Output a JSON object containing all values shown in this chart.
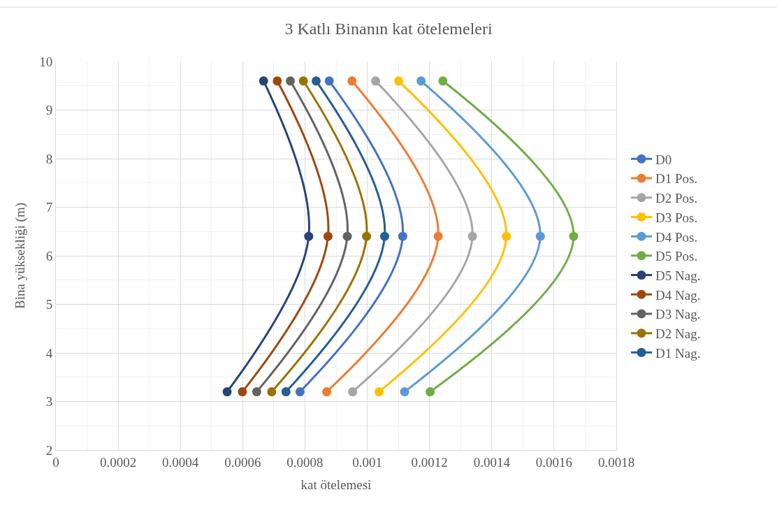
{
  "chart_data": {
    "type": "line",
    "title": "3 Katlı Binanın kat ötelemeleri",
    "xlabel": "kat ötelemesi",
    "ylabel": "Bina yüksekliği (m)",
    "xlim": [
      0,
      0.0018
    ],
    "xticks": [
      0,
      0.0002,
      0.0004,
      0.0006,
      0.0008,
      0.001,
      0.0012,
      0.0014,
      0.0016,
      0.0018
    ],
    "ylim": [
      2,
      10
    ],
    "yticks": [
      2,
      3,
      4,
      5,
      6,
      7,
      8,
      9,
      10
    ],
    "grid": true,
    "legend": "right",
    "marker": "circle",
    "line_style": "solid",
    "series": [
      {
        "name": "D0",
        "color": "#4472c4",
        "x": [
          0.000784,
          0.001114,
          0.000878
        ],
        "values": [
          3.2,
          6.4,
          9.6
        ]
      },
      {
        "name": "D1 Pos.",
        "color": "#ed7d31",
        "x": [
          0.00087,
          0.001228,
          0.000951
        ],
        "values": [
          3.2,
          6.4,
          9.6
        ]
      },
      {
        "name": "D2 Pos.",
        "color": "#a5a5a5",
        "x": [
          0.000953,
          0.001338,
          0.001027
        ],
        "values": [
          3.2,
          6.4,
          9.6
        ]
      },
      {
        "name": "D3 Pos.",
        "color": "#ffc000",
        "x": [
          0.001038,
          0.001447,
          0.001101
        ],
        "values": [
          3.2,
          6.4,
          9.6
        ]
      },
      {
        "name": "D4 Pos.",
        "color": "#5b9bd5",
        "x": [
          0.00112,
          0.001556,
          0.001173
        ],
        "values": [
          3.2,
          6.4,
          9.6
        ]
      },
      {
        "name": "D5 Pos.",
        "color": "#70ad47",
        "x": [
          0.001202,
          0.001663,
          0.001243
        ],
        "values": [
          3.2,
          6.4,
          9.6
        ]
      },
      {
        "name": "D5 Nag.",
        "color": "#264478",
        "x": [
          0.00055,
          0.000812,
          0.000667
        ],
        "values": [
          3.2,
          6.4,
          9.6
        ]
      },
      {
        "name": "D4 Nag.",
        "color": "#9e480e",
        "x": [
          0.000599,
          0.000874,
          0.000711
        ],
        "values": [
          3.2,
          6.4,
          9.6
        ]
      },
      {
        "name": "D3 Nag.",
        "color": "#636363",
        "x": [
          0.000645,
          0.000936,
          0.000753
        ],
        "values": [
          3.2,
          6.4,
          9.6
        ]
      },
      {
        "name": "D2 Nag.",
        "color": "#997300",
        "x": [
          0.000693,
          0.000998,
          0.000795
        ],
        "values": [
          3.2,
          6.4,
          9.6
        ]
      },
      {
        "name": "D1 Nag.",
        "color": "#255e91",
        "x": [
          0.000739,
          0.001056,
          0.000836
        ],
        "values": [
          3.2,
          6.4,
          9.6
        ]
      }
    ]
  }
}
